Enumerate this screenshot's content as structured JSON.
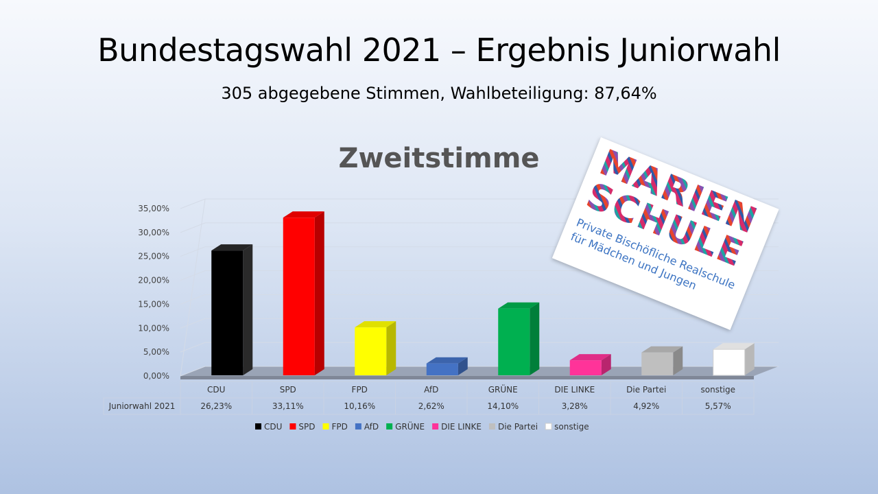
{
  "slide": {
    "title": "Bundestagswahl 2021 – Ergebnis Juniorwahl",
    "subtitle": "305 abgegebene Stimmen, Wahlbeteiligung: 87,64%"
  },
  "logo": {
    "line1": "MARIEN",
    "line2": "SCHULE",
    "sub1": "Private Bischöfliche Realschule",
    "sub2": "für Mädchen und Jungen"
  },
  "chart_data": {
    "type": "bar",
    "title": "Zweitstimme",
    "categories": [
      "CDU",
      "SPD",
      "FPD",
      "AfD",
      "GRÜNE",
      "DIE LINKE",
      "Die Partei",
      "sonstige"
    ],
    "series": [
      {
        "name": "Juniorwahl 2021",
        "values": [
          26.23,
          33.11,
          10.16,
          2.62,
          14.1,
          3.28,
          4.92,
          5.57
        ],
        "value_labels": [
          "26,23%",
          "33,11%",
          "10,16%",
          "2,62%",
          "14,10%",
          "3,28%",
          "4,92%",
          "5,57%"
        ]
      }
    ],
    "colors": [
      "#000000",
      "#ff0000",
      "#ffff00",
      "#4472c4",
      "#00b050",
      "#ff3399",
      "#bfbfbf",
      "#ffffff"
    ],
    "ylim": [
      0,
      35
    ],
    "yticks": [
      "0,00%",
      "5,00%",
      "10,00%",
      "15,00%",
      "20,00%",
      "25,00%",
      "30,00%",
      "35,00%"
    ],
    "grid": true,
    "legend": "bottom",
    "data_table": true,
    "style": "3d-column"
  }
}
